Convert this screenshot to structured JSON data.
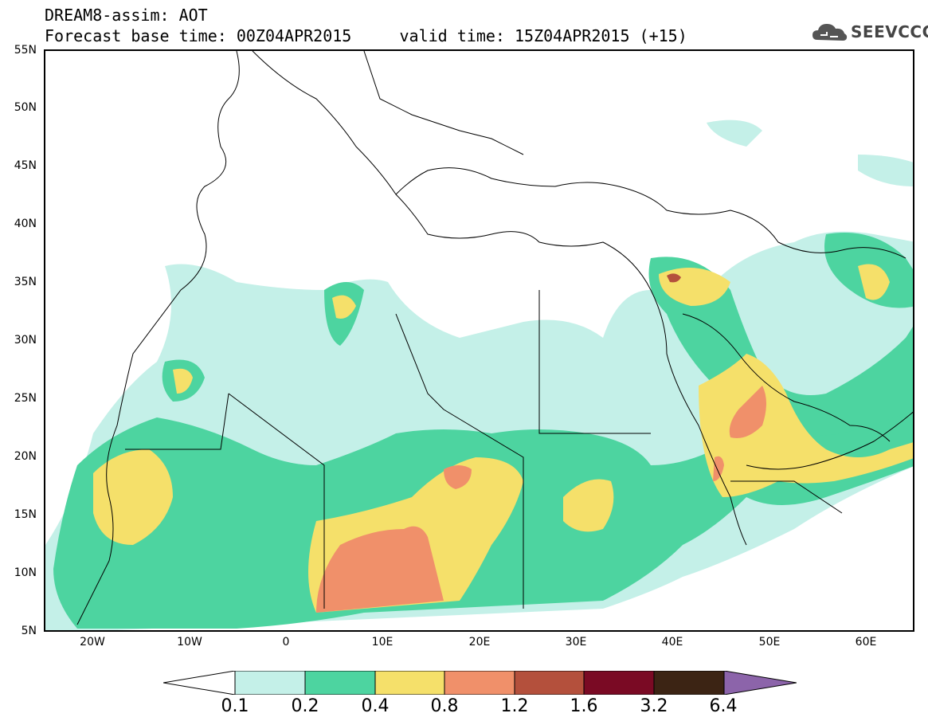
{
  "header": {
    "title_line1": "DREAM8-assim: AOT",
    "title_line2": "Forecast base time: 00Z04APR2015     valid time: 15Z04APR2015 (+15)"
  },
  "logo": {
    "text": "SEEVCCC",
    "icon": "cloud-logo-icon"
  },
  "map": {
    "lat_labels": [
      "55N",
      "50N",
      "45N",
      "40N",
      "35N",
      "30N",
      "25N",
      "20N",
      "15N",
      "10N",
      "5N"
    ],
    "lon_labels": [
      "20W",
      "10W",
      "0",
      "10E",
      "20E",
      "30E",
      "40E",
      "50E",
      "60E"
    ],
    "lon_range": [
      -25,
      65
    ],
    "lat_range": [
      5,
      55
    ]
  },
  "legend": {
    "thresholds": [
      "0.1",
      "0.2",
      "0.4",
      "0.8",
      "1.2",
      "1.6",
      "3.2",
      "6.4"
    ],
    "colors": [
      "#ffffff",
      "#c4f0e8",
      "#4dd4a0",
      "#f5e06a",
      "#f0906a",
      "#b4503c",
      "#7a0a24",
      "#3c2414",
      "#8c64aa"
    ]
  }
}
